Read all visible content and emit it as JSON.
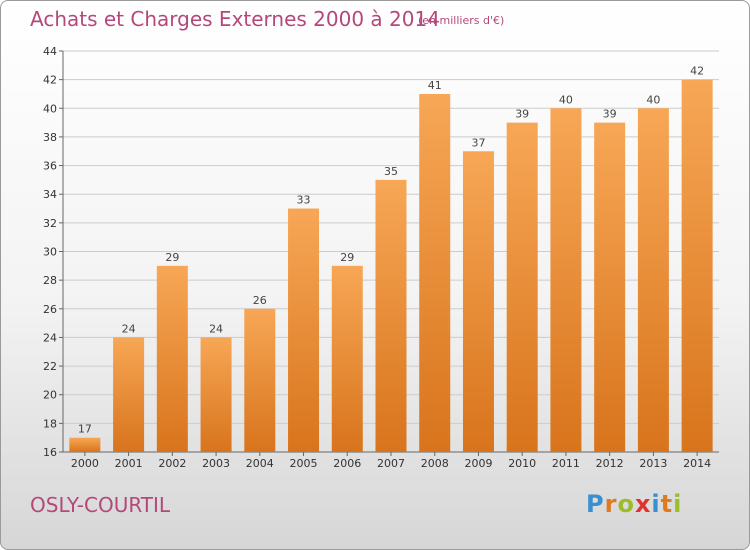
{
  "title": "Achats et Charges Externes 2000 à 2014",
  "unit": "(en milliers d'€)",
  "commune": "OSLY-COURTIL",
  "logo": {
    "text": "Proxiti",
    "letters": [
      {
        "ch": "P",
        "color": "#3a8fd0"
      },
      {
        "ch": "r",
        "color": "#e07a1f"
      },
      {
        "ch": "o",
        "color": "#9bbd2a"
      },
      {
        "ch": "x",
        "color": "#e0332e"
      },
      {
        "ch": "i",
        "color": "#3a8fd0"
      },
      {
        "ch": "t",
        "color": "#e07a1f"
      },
      {
        "ch": "i",
        "color": "#9bbd2a"
      }
    ]
  },
  "colors": {
    "bar_light": "#f7a756",
    "bar_dark": "#d8741c",
    "title": "#b5487b",
    "grid": "#cccccc"
  },
  "chart_data": {
    "type": "bar",
    "categories": [
      "2000",
      "2001",
      "2002",
      "2003",
      "2004",
      "2005",
      "2006",
      "2007",
      "2008",
      "2009",
      "2010",
      "2011",
      "2012",
      "2013",
      "2014"
    ],
    "values": [
      17,
      24,
      29,
      24,
      26,
      33,
      29,
      35,
      41,
      37,
      39,
      40,
      39,
      40,
      42
    ],
    "ylim": [
      16,
      44
    ],
    "yticks": [
      16,
      18,
      20,
      22,
      24,
      26,
      28,
      30,
      32,
      34,
      36,
      38,
      40,
      42,
      44
    ],
    "grid": true,
    "data_labels": true
  }
}
